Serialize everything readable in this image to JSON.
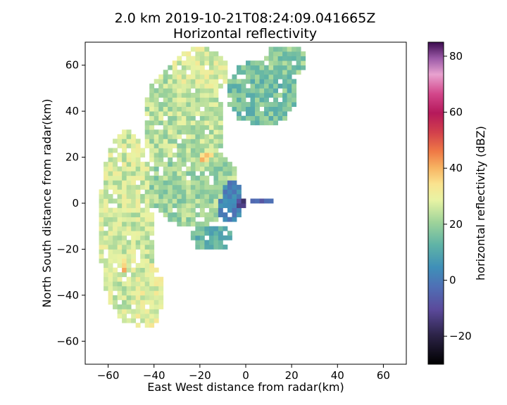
{
  "chart_data": {
    "type": "heatmap",
    "title_line1": "2.0 km 2019-10-21T08:24:09.041665Z",
    "title_line2": "Horizontal reflectivity",
    "xlabel": "East West distance from radar(km)",
    "ylabel": "North South distance from radar(km)",
    "xlim": [
      -70,
      70
    ],
    "ylim": [
      -70,
      70
    ],
    "xticks": [
      -60,
      -40,
      -20,
      0,
      20,
      40,
      60
    ],
    "yticks": [
      -60,
      -40,
      -20,
      0,
      20,
      40,
      60
    ],
    "grid": false,
    "colorbar": {
      "label": "horizontal reflectivity (dBZ)",
      "range": [
        -30,
        85
      ],
      "ticks": [
        -20,
        0,
        20,
        40,
        60,
        80
      ],
      "colormap": "spectral-like"
    },
    "reflectivity_regions": [
      {
        "name": "western-band",
        "center": [
          -52,
          -10
        ],
        "radius": [
          12,
          42
        ],
        "dbz": 22
      },
      {
        "name": "southern-tail",
        "center": [
          -44,
          -40
        ],
        "radius": [
          8,
          15
        ],
        "dbz": 24
      },
      {
        "name": "southern-core",
        "center": [
          -53,
          -27
        ],
        "radius": [
          4,
          7
        ],
        "dbz": 33
      },
      {
        "name": "north-band",
        "center": [
          -27,
          35
        ],
        "radius": [
          18,
          26
        ],
        "dbz": 20
      },
      {
        "name": "northern-top",
        "center": [
          -20,
          57
        ],
        "radius": [
          12,
          11
        ],
        "dbz": 23
      },
      {
        "name": "central-mass",
        "center": [
          -23,
          8
        ],
        "radius": [
          20,
          18
        ],
        "dbz": 18
      },
      {
        "name": "mid-core",
        "center": [
          -18,
          20
        ],
        "radius": [
          4,
          3
        ],
        "dbz": 32
      },
      {
        "name": "eastern-cells",
        "center": [
          7,
          48
        ],
        "radius": [
          15,
          15
        ],
        "dbz": 14
      },
      {
        "name": "northeast-patch",
        "center": [
          17,
          62
        ],
        "radius": [
          10,
          7
        ],
        "dbz": 16
      },
      {
        "name": "near-radar-echo",
        "center": [
          -7,
          1
        ],
        "radius": [
          6,
          10
        ],
        "dbz": 2
      },
      {
        "name": "radar-clutter",
        "center": [
          -3,
          0
        ],
        "radius": [
          3,
          2
        ],
        "dbz": -12
      },
      {
        "name": "east-spike",
        "center": [
          6,
          1
        ],
        "radius": [
          6,
          1.5
        ],
        "dbz": -5
      },
      {
        "name": "south-east-strip",
        "center": [
          -15,
          -15
        ],
        "radius": [
          10,
          6
        ],
        "dbz": 12
      }
    ]
  }
}
